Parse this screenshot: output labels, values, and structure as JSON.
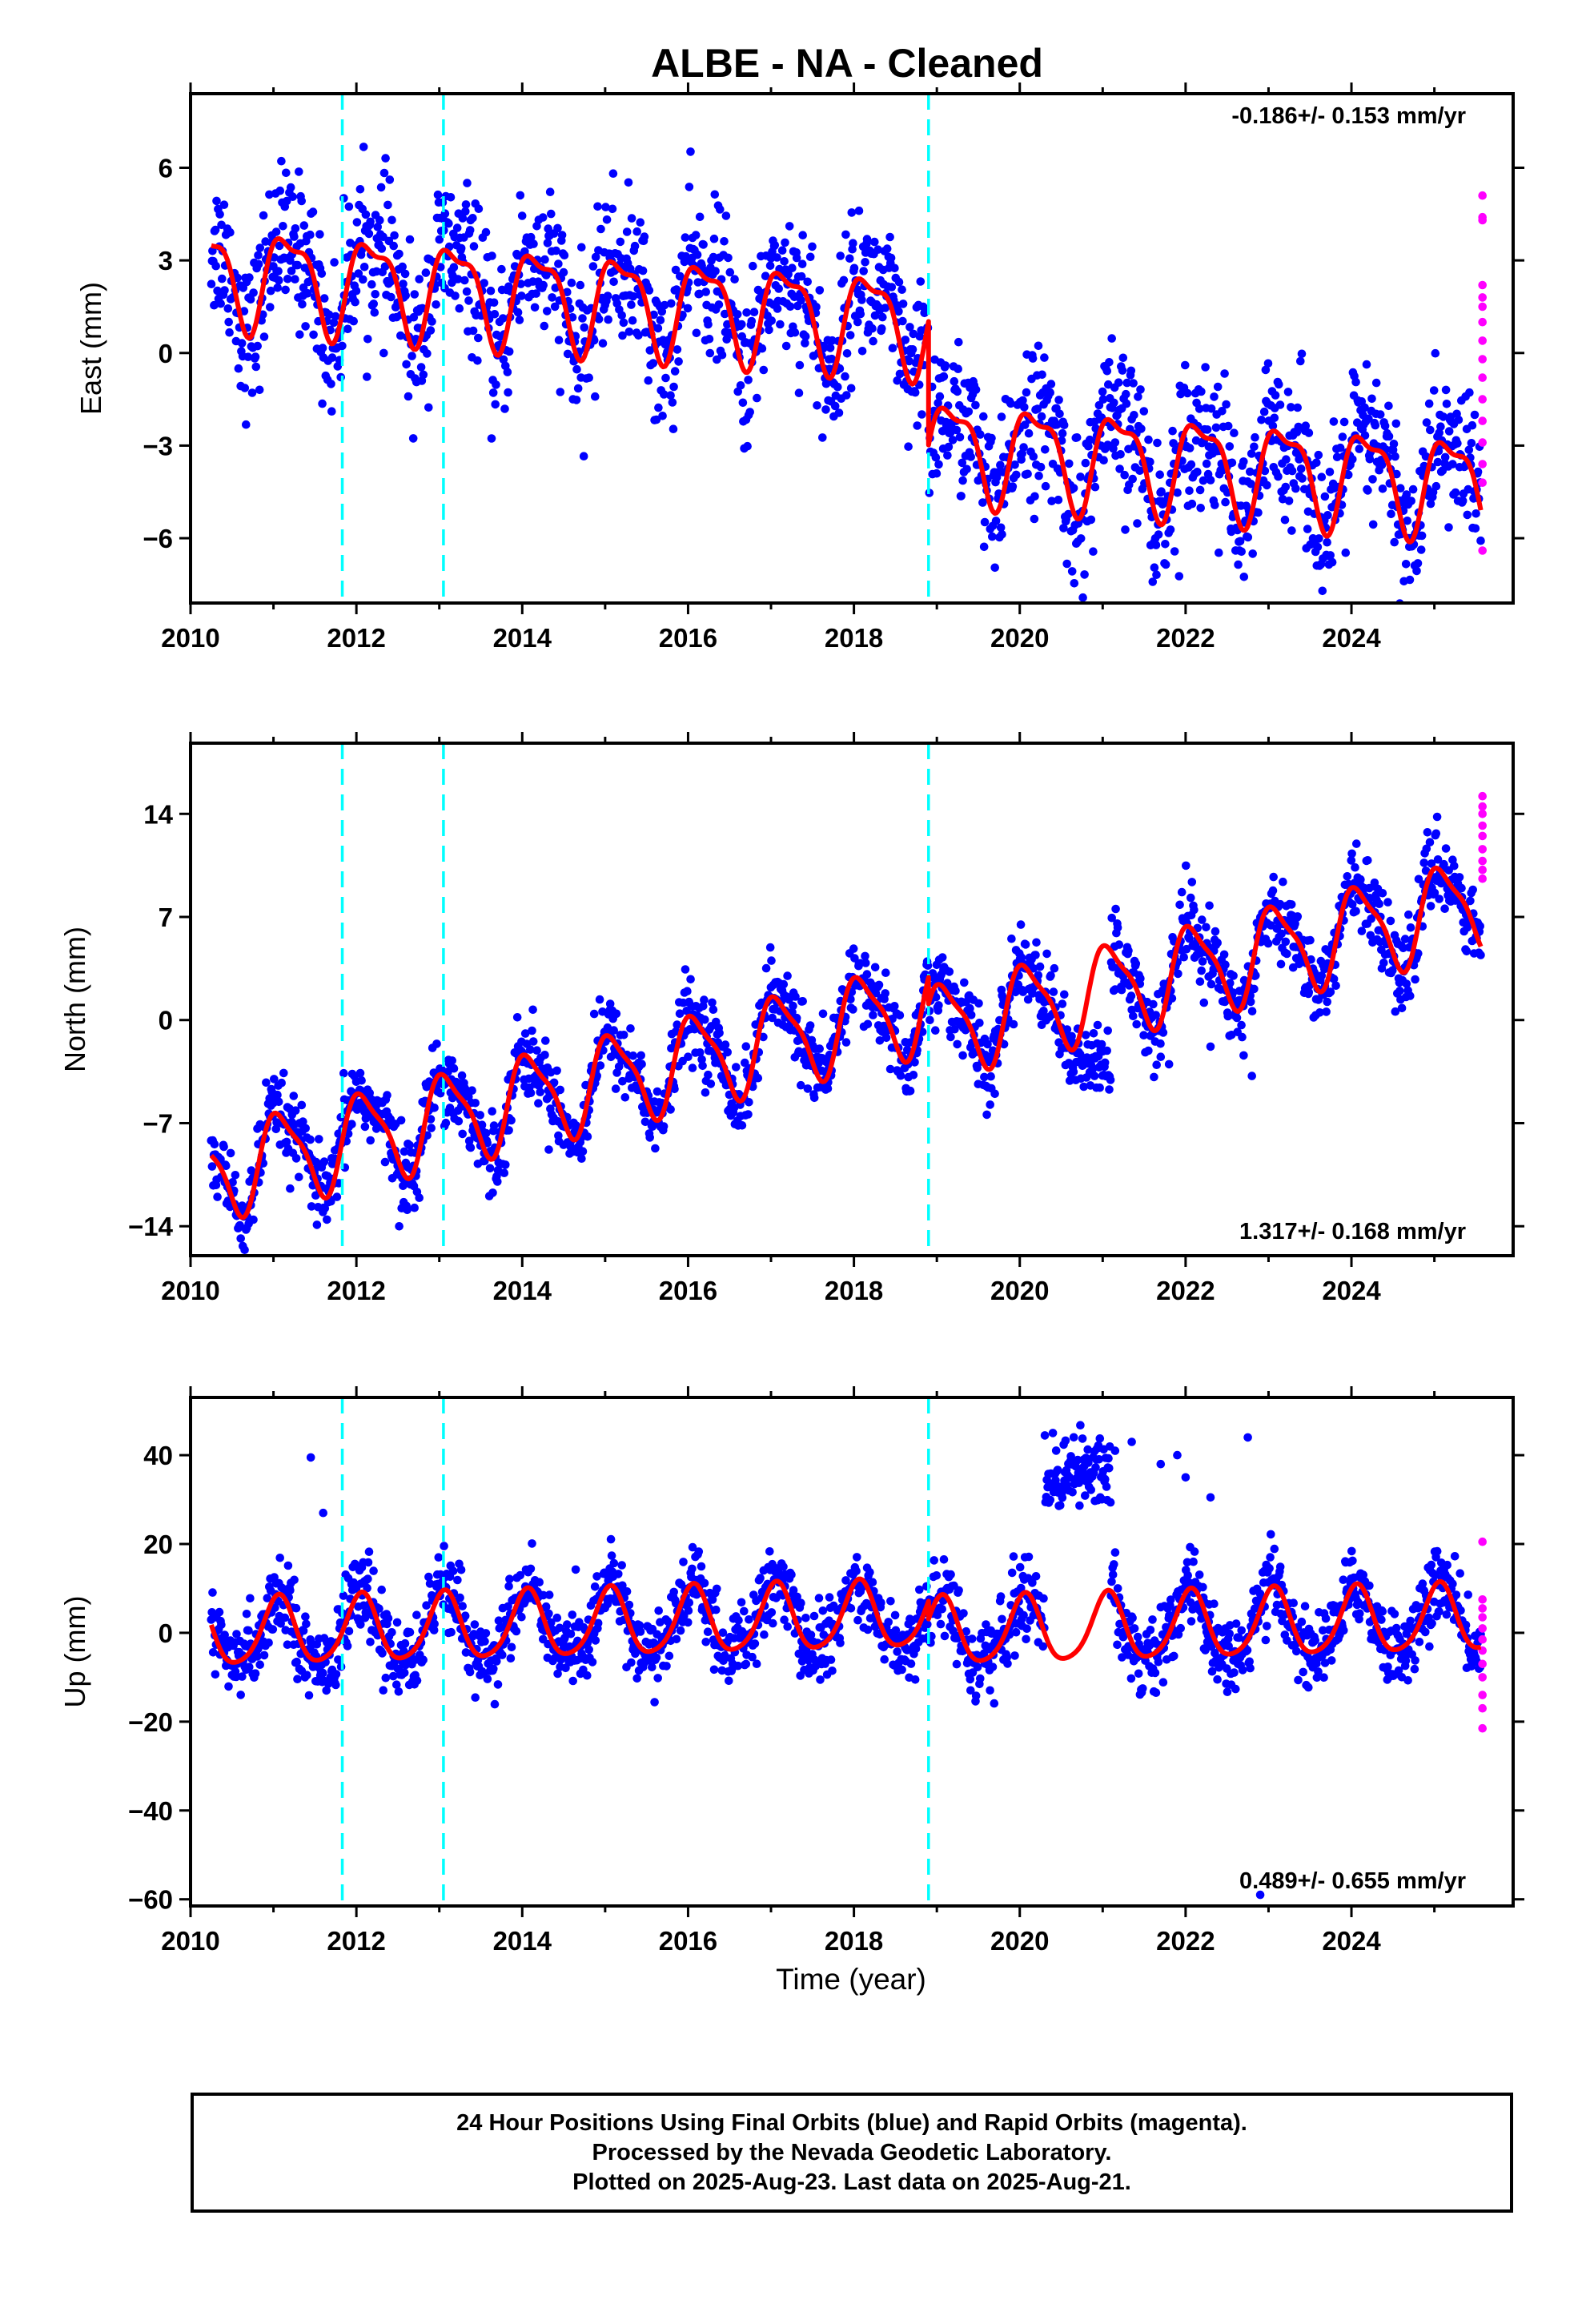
{
  "title": "ALBE  - NA - Cleaned",
  "xlabel": "Time (year)",
  "footer": {
    "line1": "24 Hour Positions Using Final Orbits (blue) and Rapid Orbits (magenta).",
    "line2": "Processed by the Nevada Geodetic Laboratory.",
    "line3": "Plotted on 2025-Aug-23. Last data on 2025-Aug-21."
  },
  "colors": {
    "final": "#0000ff",
    "rapid": "#ff00ff",
    "model": "#ff0000",
    "events": "#00ffff"
  },
  "chart_data": [
    {
      "type": "scatter",
      "component": "East",
      "ylabel": "East (mm)",
      "rate": "-0.186+/- 0.153 mm/yr",
      "xlim": [
        2010.0,
        2025.95
      ],
      "ylim": [
        -8.1,
        8.4
      ],
      "xticks": [
        2010,
        2012,
        2014,
        2016,
        2018,
        2020,
        2022,
        2024
      ],
      "yticks": [
        -6,
        -3,
        0,
        3,
        6
      ],
      "event_lines": [
        2011.83,
        2013.05,
        2018.9
      ],
      "model": {
        "offset_before": 1.9,
        "offset_after": -2.1,
        "step_at": 2018.9,
        "trend": -0.186,
        "ref_year": 2014,
        "annual_amp": 1.5,
        "annual_phase": 0.4,
        "semi_amp": 0.55,
        "semi_phase": 2.0
      },
      "scatter_sd": 1.2,
      "rapid": {
        "x": 2025.58,
        "y": [
          5.1,
          4.4,
          4.3,
          2.2,
          1.8,
          1.5,
          1.0,
          0.4,
          -0.2,
          -0.8,
          -1.5,
          -2.2,
          -2.9,
          -3.6,
          -4.2,
          -6.4
        ]
      }
    },
    {
      "type": "scatter",
      "component": "North",
      "ylabel": "North (mm)",
      "rate": "1.317+/- 0.168 mm/yr",
      "xlim": [
        2010.0,
        2025.95
      ],
      "ylim": [
        -16.0,
        18.8
      ],
      "xticks": [
        2010,
        2012,
        2014,
        2016,
        2018,
        2020,
        2022,
        2024
      ],
      "yticks": [
        -14,
        -7,
        0,
        7,
        14
      ],
      "event_lines": [
        2011.83,
        2013.05,
        2018.9
      ],
      "model": {
        "offset_before": -5.4,
        "offset_after": -7.2,
        "step_at": 2018.9,
        "trend": 1.317,
        "ref_year": 2014,
        "annual_amp": 3.0,
        "annual_phase": 1.0,
        "semi_amp": 0.8,
        "semi_phase": 2.5
      },
      "scatter_sd": 1.3,
      "anomaly": {
        "x0": 2020.6,
        "x1": 2021.1,
        "y_mean": -3.0,
        "sd": 1.3
      },
      "outliers": {
        "x": [
          2021.7,
          2021.8,
          2022.3,
          2022.7,
          2022.8
        ],
        "y": [
          -2.5,
          -3.0,
          -1.8,
          -2.4,
          -3.8
        ]
      },
      "rapid": {
        "x": 2025.58,
        "y": [
          15.2,
          14.5,
          14.0,
          13.2,
          12.5,
          11.6,
          10.8,
          10.2,
          9.6
        ]
      }
    },
    {
      "type": "scatter",
      "component": "Up",
      "ylabel": "Up (mm)",
      "rate": "0.489+/- 0.655 mm/yr",
      "xlim": [
        2010.0,
        2025.95
      ],
      "ylim": [
        -61.5,
        53.0
      ],
      "xticks": [
        2010,
        2012,
        2014,
        2016,
        2018,
        2020,
        2022,
        2024
      ],
      "yticks": [
        -60,
        -40,
        -20,
        0,
        20,
        40
      ],
      "event_lines": [
        2011.83,
        2013.05,
        2018.9
      ],
      "model": {
        "offset_before": 1.5,
        "offset_after": -2.5,
        "step_at": 2018.9,
        "trend": 0.489,
        "ref_year": 2014,
        "annual_amp": 7.5,
        "annual_phase": 1.2,
        "semi_amp": 1.2,
        "semi_phase": 0.5
      },
      "scatter_sd": 4.2,
      "anomaly": {
        "x0": 2020.3,
        "x1": 2021.1,
        "y_mean": 36.0,
        "sd": 4.0
      },
      "outliers": {
        "x": [
          2011.45,
          2011.6,
          2021.15,
          2021.35,
          2021.7,
          2021.9,
          2022.0,
          2022.3,
          2022.75,
          2022.9
        ],
        "y": [
          39.5,
          27.0,
          41.0,
          43.0,
          38.0,
          40.0,
          35.0,
          30.5,
          44.0,
          -59.0
        ]
      },
      "rapid": {
        "x": 2025.58,
        "y": [
          20.5,
          7.5,
          5.5,
          3.5,
          1.0,
          -1.5,
          -4.0,
          -7.0,
          -10.0,
          -14.0,
          -17.0,
          -21.5
        ]
      }
    }
  ]
}
